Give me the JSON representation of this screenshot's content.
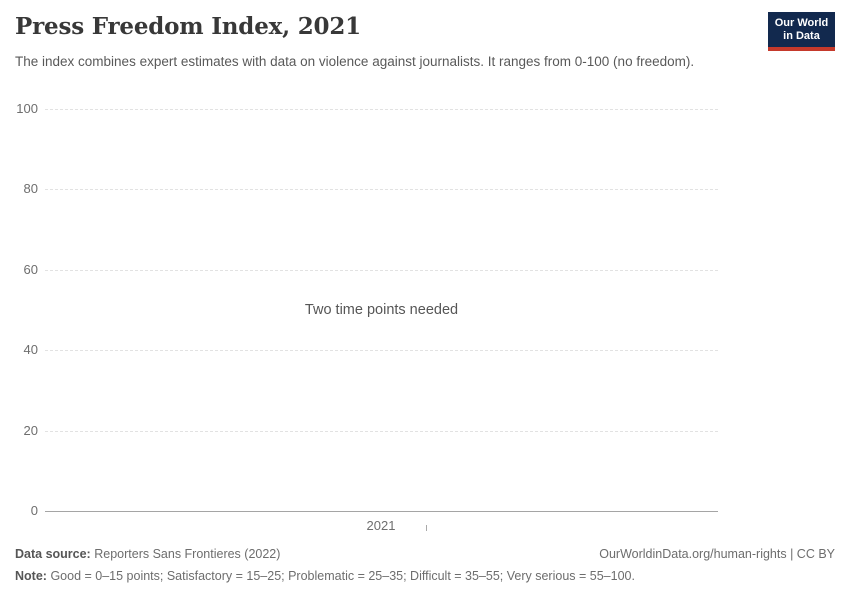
{
  "header": {
    "title": "Press Freedom Index, 2021",
    "subtitle": "The index combines expert estimates with data on violence against journalists. It ranges from 0-100 (no freedom).",
    "logo": {
      "line1": "Our World",
      "line2": "in Data",
      "background_color": "#12294e",
      "accent_color": "#c5392b"
    }
  },
  "chart_data": {
    "type": "line",
    "title": "Press Freedom Index, 2021",
    "series": [],
    "message": "Two time points needed",
    "xlabel": "",
    "ylabel": "",
    "ylim": [
      0,
      100
    ],
    "yticks": [
      0,
      20,
      40,
      60,
      80,
      100
    ],
    "xticks": [
      "2021"
    ],
    "legend": "none",
    "grid": "horizontal-dashed",
    "gridline_color": "#e2e2e2",
    "axis_line_color": "#a5a5a5",
    "tick_label_color": "#6e6e6e"
  },
  "footer": {
    "datasource_label": "Data source:",
    "datasource_value": "Reporters Sans Frontieres (2022)",
    "rights": "OurWorldinData.org/human-rights | CC BY",
    "note_label": "Note:",
    "note_value": "Good = 0–15 points; Satisfactory = 15–25; Problematic = 25–35; Difficult = 35–55; Very serious = 55–100."
  }
}
